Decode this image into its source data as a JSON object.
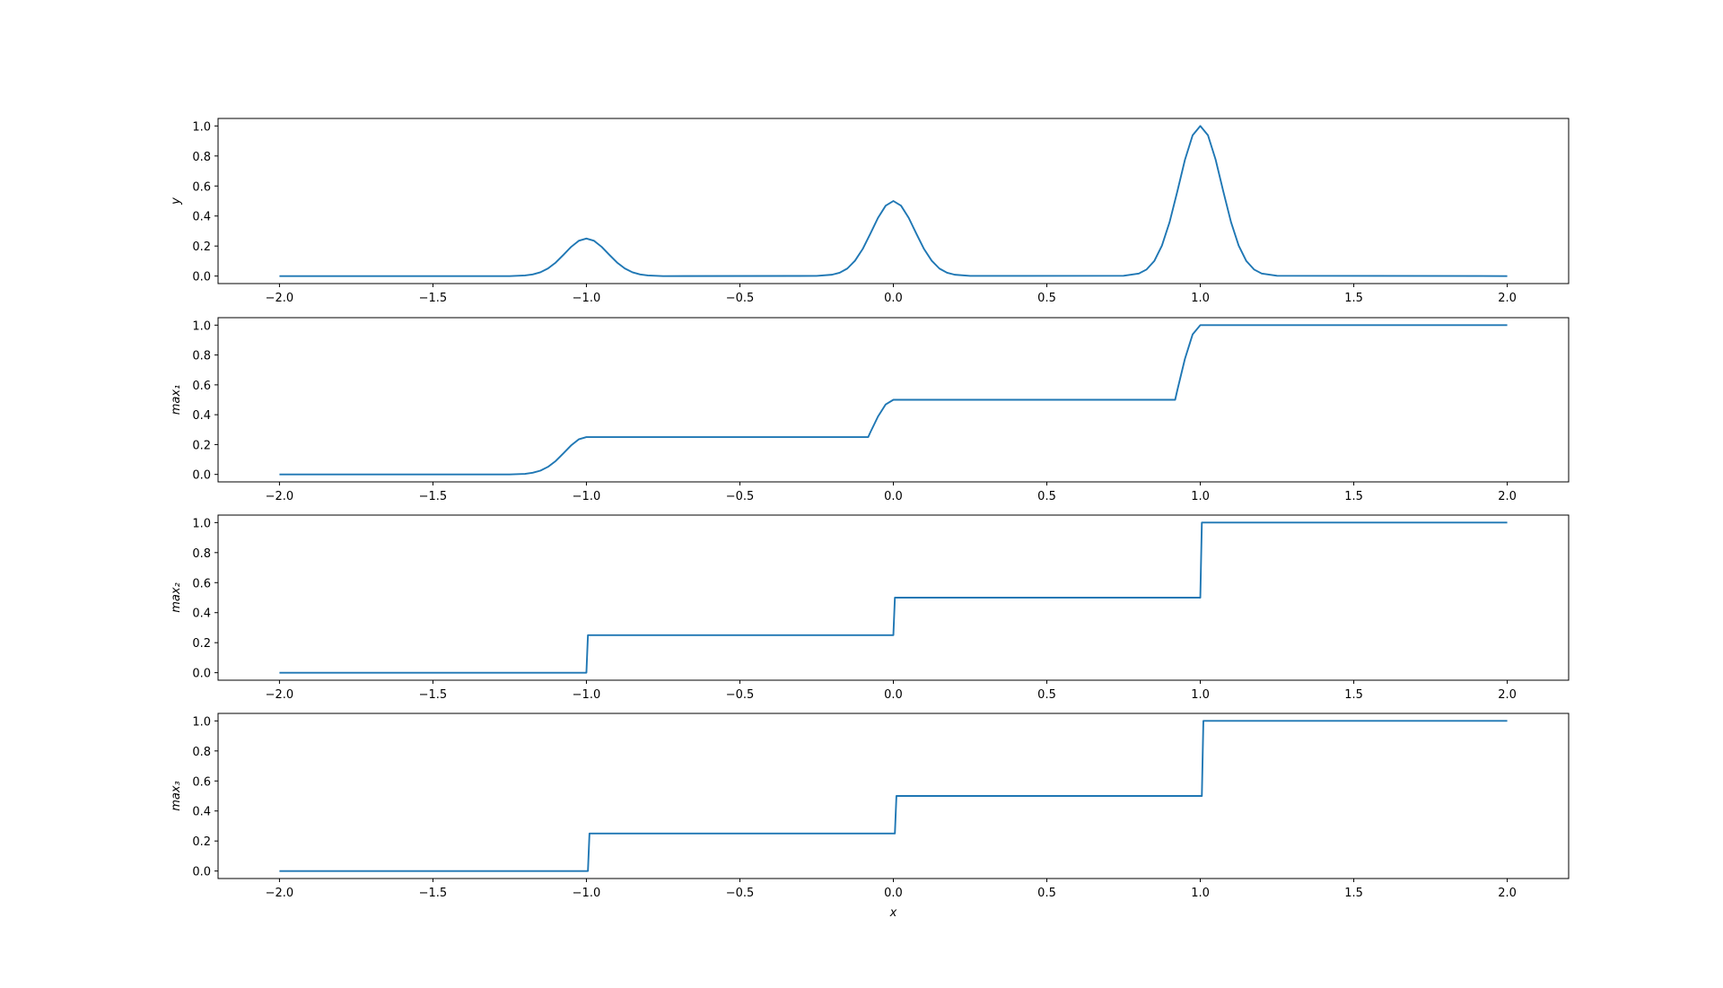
{
  "chart_data": [
    {
      "type": "line",
      "ylabel": "y",
      "color": "#1f77b4",
      "x": [
        -2,
        -1.25,
        -1.2,
        -1.175,
        -1.15,
        -1.125,
        -1.1,
        -1.075,
        -1.05,
        -1.025,
        -1,
        -0.975,
        -0.95,
        -0.925,
        -0.9,
        -0.875,
        -0.85,
        -0.825,
        -0.8,
        -0.75,
        -0.25,
        -0.2,
        -0.175,
        -0.15,
        -0.125,
        -0.1,
        -0.075,
        -0.05,
        -0.025,
        0,
        0.025,
        0.05,
        0.075,
        0.1,
        0.125,
        0.15,
        0.175,
        0.2,
        0.25,
        0.75,
        0.8,
        0.825,
        0.85,
        0.875,
        0.9,
        0.925,
        0.95,
        0.975,
        1,
        1.025,
        1.05,
        1.075,
        1.1,
        1.125,
        1.15,
        1.175,
        1.2,
        1.25,
        2
      ],
      "values": [
        0,
        0,
        0.004,
        0.011,
        0.025,
        0.051,
        0.09,
        0.141,
        0.194,
        0.235,
        0.25,
        0.235,
        0.194,
        0.141,
        0.09,
        0.051,
        0.025,
        0.011,
        0.004,
        0,
        0.001,
        0.009,
        0.022,
        0.05,
        0.102,
        0.18,
        0.282,
        0.388,
        0.469,
        0.5,
        0.469,
        0.388,
        0.282,
        0.18,
        0.102,
        0.05,
        0.022,
        0.009,
        0.001,
        0.002,
        0.017,
        0.044,
        0.1,
        0.203,
        0.36,
        0.563,
        0.775,
        0.938,
        1,
        0.938,
        0.775,
        0.563,
        0.36,
        0.203,
        0.1,
        0.044,
        0.017,
        0.002,
        0
      ],
      "xlim": [
        -2.2,
        2.2
      ],
      "ylim": [
        -0.05,
        1.05
      ],
      "xticks": [
        {
          "value": -2,
          "label": "−2.0"
        },
        {
          "value": -1.5,
          "label": "−1.5"
        },
        {
          "value": -1,
          "label": "−1.0"
        },
        {
          "value": -0.5,
          "label": "−0.5"
        },
        {
          "value": 0,
          "label": "0.0"
        },
        0.5,
        {
          "value": 1,
          "label": "1.0"
        },
        1.5,
        {
          "value": 2,
          "label": "2.0"
        }
      ],
      "yticks": [
        {
          "value": 0,
          "label": "0.0"
        },
        0.2,
        0.4,
        0.6,
        0.8,
        {
          "value": 1,
          "label": "1.0"
        }
      ]
    },
    {
      "type": "line",
      "ylabel": "max₁",
      "color": "#1f77b4",
      "x": [
        -2,
        -1.25,
        -1.2,
        -1.175,
        -1.15,
        -1.125,
        -1.1,
        -1.075,
        -1.05,
        -1.025,
        -1,
        -0.082,
        -0.075,
        -0.05,
        -0.025,
        0,
        0.918,
        0.925,
        0.95,
        0.975,
        1,
        2
      ],
      "values": [
        0,
        0,
        0.004,
        0.011,
        0.025,
        0.051,
        0.09,
        0.141,
        0.194,
        0.235,
        0.25,
        0.25,
        0.282,
        0.388,
        0.469,
        0.5,
        0.5,
        0.563,
        0.775,
        0.938,
        1,
        1
      ],
      "xlim": [
        -2.2,
        2.2
      ],
      "ylim": [
        -0.05,
        1.05
      ],
      "xticks": [
        {
          "value": -2,
          "label": "−2.0"
        },
        {
          "value": -1.5,
          "label": "−1.5"
        },
        {
          "value": -1,
          "label": "−1.0"
        },
        {
          "value": -0.5,
          "label": "−0.5"
        },
        {
          "value": 0,
          "label": "0.0"
        },
        0.5,
        {
          "value": 1,
          "label": "1.0"
        },
        1.5,
        {
          "value": 2,
          "label": "2.0"
        }
      ],
      "yticks": [
        {
          "value": 0,
          "label": "0.0"
        },
        0.2,
        0.4,
        0.6,
        0.8,
        {
          "value": 1,
          "label": "1.0"
        }
      ]
    },
    {
      "type": "line",
      "ylabel": "max₂",
      "color": "#1f77b4",
      "x": [
        -2,
        -1,
        -0.995,
        0,
        0.005,
        1,
        1.005,
        2
      ],
      "values": [
        0,
        0,
        0.25,
        0.25,
        0.5,
        0.5,
        1,
        1
      ],
      "xlim": [
        -2.2,
        2.2
      ],
      "ylim": [
        -0.05,
        1.05
      ],
      "xticks": [
        {
          "value": -2,
          "label": "−2.0"
        },
        {
          "value": -1.5,
          "label": "−1.5"
        },
        {
          "value": -1,
          "label": "−1.0"
        },
        {
          "value": -0.5,
          "label": "−0.5"
        },
        {
          "value": 0,
          "label": "0.0"
        },
        0.5,
        {
          "value": 1,
          "label": "1.0"
        },
        1.5,
        {
          "value": 2,
          "label": "2.0"
        }
      ],
      "yticks": [
        {
          "value": 0,
          "label": "0.0"
        },
        0.2,
        0.4,
        0.6,
        0.8,
        {
          "value": 1,
          "label": "1.0"
        }
      ]
    },
    {
      "type": "line",
      "ylabel": "max₃",
      "xlabel": "x",
      "color": "#1f77b4",
      "x": [
        -2,
        -0.995,
        -0.99,
        0.005,
        0.01,
        1.005,
        1.01,
        2
      ],
      "values": [
        0,
        0,
        0.25,
        0.25,
        0.5,
        0.5,
        1,
        1
      ],
      "xlim": [
        -2.2,
        2.2
      ],
      "ylim": [
        -0.05,
        1.05
      ],
      "xticks": [
        {
          "value": -2,
          "label": "−2.0"
        },
        {
          "value": -1.5,
          "label": "−1.5"
        },
        {
          "value": -1,
          "label": "−1.0"
        },
        {
          "value": -0.5,
          "label": "−0.5"
        },
        {
          "value": 0,
          "label": "0.0"
        },
        0.5,
        {
          "value": 1,
          "label": "1.0"
        },
        1.5,
        {
          "value": 2,
          "label": "2.0"
        }
      ],
      "yticks": [
        {
          "value": 0,
          "label": "0.0"
        },
        0.2,
        0.4,
        0.6,
        0.8,
        {
          "value": 1,
          "label": "1.0"
        }
      ]
    }
  ]
}
